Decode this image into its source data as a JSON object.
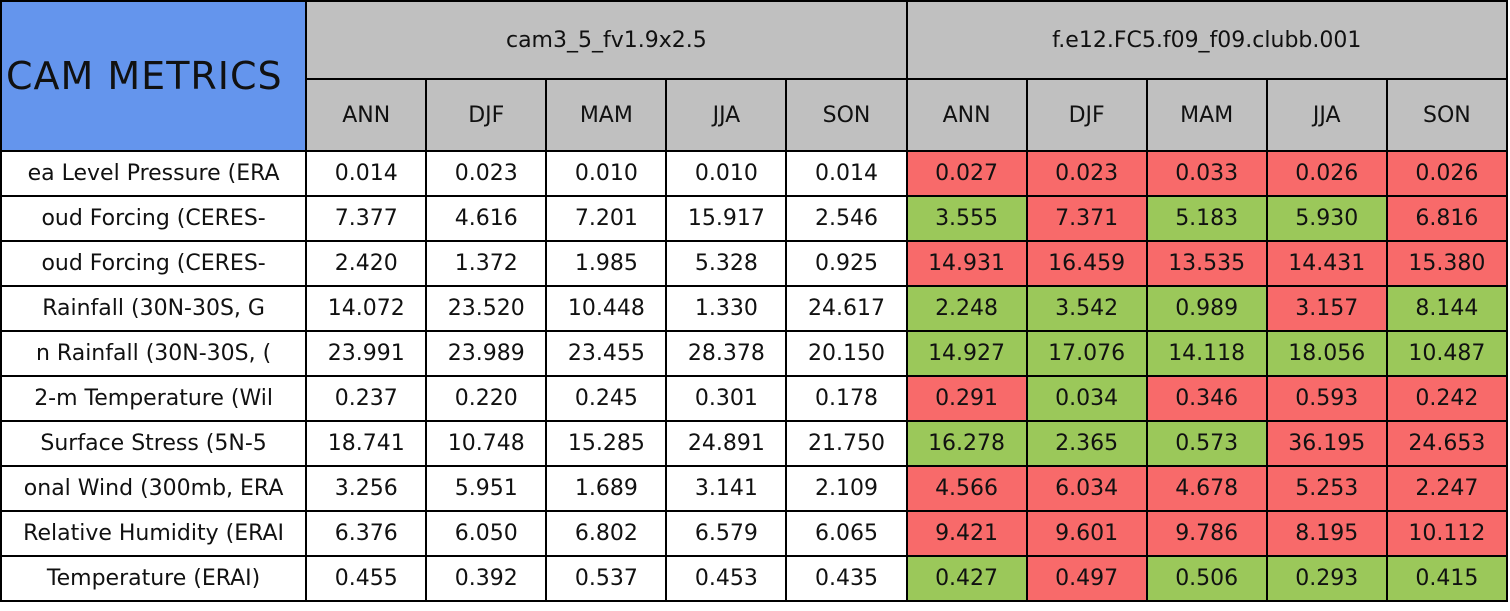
{
  "title": "CAM METRICS",
  "models": [
    {
      "name": "cam3_5_fv1.9x2.5",
      "seasons": [
        "ANN",
        "DJF",
        "MAM",
        "JJA",
        "SON"
      ]
    },
    {
      "name": "f.e12.FC5.f09_f09.clubb.001",
      "seasons": [
        "ANN",
        "DJF",
        "MAM",
        "JJA",
        "SON"
      ]
    }
  ],
  "rows": [
    {
      "label": "ea Level Pressure (ERA",
      "cells": [
        [
          "0.014",
          "0.023",
          "0.010",
          "0.010",
          "0.014"
        ],
        [
          "0.027",
          "0.023",
          "0.033",
          "0.026",
          "0.026"
        ]
      ],
      "colors": [
        "#f86a6a",
        "#f86a6a",
        "#f86a6a",
        "#f86a6a",
        "#f86a6a"
      ]
    },
    {
      "label": "oud Forcing (CERES-",
      "cells": [
        [
          "7.377",
          "4.616",
          "7.201",
          "15.917",
          "2.546"
        ],
        [
          "3.555",
          "7.371",
          "5.183",
          "5.930",
          "6.816"
        ]
      ],
      "colors": [
        "#9bc85a",
        "#f86a6a",
        "#9bc85a",
        "#9bc85a",
        "#f86a6a"
      ]
    },
    {
      "label": "oud Forcing (CERES-",
      "cells": [
        [
          "2.420",
          "1.372",
          "1.985",
          "5.328",
          "0.925"
        ],
        [
          "14.931",
          "16.459",
          "13.535",
          "14.431",
          "15.380"
        ]
      ],
      "colors": [
        "#f86a6a",
        "#f86a6a",
        "#f86a6a",
        "#f86a6a",
        "#f86a6a"
      ]
    },
    {
      "label": "Rainfall (30N-30S, G",
      "cells": [
        [
          "14.072",
          "23.520",
          "10.448",
          "1.330",
          "24.617"
        ],
        [
          "2.248",
          "3.542",
          "0.989",
          "3.157",
          "8.144"
        ]
      ],
      "colors": [
        "#9bc85a",
        "#9bc85a",
        "#9bc85a",
        "#f86a6a",
        "#9bc85a"
      ]
    },
    {
      "label": "n Rainfall (30N-30S, (",
      "cells": [
        [
          "23.991",
          "23.989",
          "23.455",
          "28.378",
          "20.150"
        ],
        [
          "14.927",
          "17.076",
          "14.118",
          "18.056",
          "10.487"
        ]
      ],
      "colors": [
        "#9bc85a",
        "#9bc85a",
        "#9bc85a",
        "#9bc85a",
        "#9bc85a"
      ]
    },
    {
      "label": "2-m Temperature (Wil",
      "cells": [
        [
          "0.237",
          "0.220",
          "0.245",
          "0.301",
          "0.178"
        ],
        [
          "0.291",
          "0.034",
          "0.346",
          "0.593",
          "0.242"
        ]
      ],
      "colors": [
        "#f86a6a",
        "#9bc85a",
        "#f86a6a",
        "#f86a6a",
        "#f86a6a"
      ]
    },
    {
      "label": "Surface Stress (5N-5",
      "cells": [
        [
          "18.741",
          "10.748",
          "15.285",
          "24.891",
          "21.750"
        ],
        [
          "16.278",
          "2.365",
          "0.573",
          "36.195",
          "24.653"
        ]
      ],
      "colors": [
        "#9bc85a",
        "#9bc85a",
        "#9bc85a",
        "#f86a6a",
        "#f86a6a"
      ]
    },
    {
      "label": "onal Wind (300mb, ERA",
      "cells": [
        [
          "3.256",
          "5.951",
          "1.689",
          "3.141",
          "2.109"
        ],
        [
          "4.566",
          "6.034",
          "4.678",
          "5.253",
          "2.247"
        ]
      ],
      "colors": [
        "#f86a6a",
        "#f86a6a",
        "#f86a6a",
        "#f86a6a",
        "#f86a6a"
      ]
    },
    {
      "label": "Relative Humidity (ERAI",
      "cells": [
        [
          "6.376",
          "6.050",
          "6.802",
          "6.579",
          "6.065"
        ],
        [
          "9.421",
          "9.601",
          "9.786",
          "8.195",
          "10.112"
        ]
      ],
      "colors": [
        "#f86a6a",
        "#f86a6a",
        "#f86a6a",
        "#f86a6a",
        "#f86a6a"
      ]
    },
    {
      "label": "Temperature (ERAI)",
      "cells": [
        [
          "0.455",
          "0.392",
          "0.537",
          "0.453",
          "0.435"
        ],
        [
          "0.427",
          "0.497",
          "0.506",
          "0.293",
          "0.415"
        ]
      ],
      "colors": [
        "#9bc85a",
        "#f86a6a",
        "#9bc85a",
        "#9bc85a",
        "#9bc85a"
      ]
    }
  ]
}
